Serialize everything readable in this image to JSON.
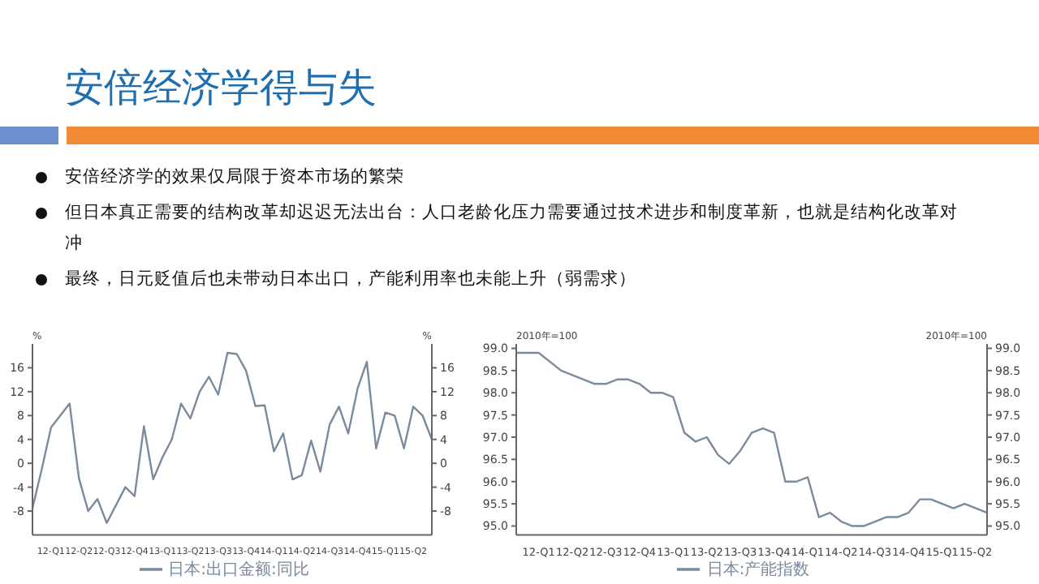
{
  "chart_data": [
    {
      "type": "line",
      "title": "安倍经济学得与失",
      "annotations": [
        "安倍经济学的效果仅局限于资本市场的繁荣",
        "但日本真正需要的结构改革却迟迟无法出台：人口老龄化压力需要通过技术进步和制度革新，也就是结构化改革对冲",
        "最终，日元贬值后也未带动日本出口，产能利用率也未能上升（弱需求）"
      ],
      "categories": [
        null,
        null,
        "12-Q1",
        null,
        null,
        "12-Q2",
        null,
        null,
        "12-Q3",
        null,
        null,
        "12-Q4",
        null,
        null,
        "13-Q1",
        null,
        null,
        "13-Q2",
        null,
        null,
        "13-Q3",
        null,
        null,
        "13-Q4",
        null,
        null,
        "14-Q1",
        null,
        null,
        "14-Q2",
        null,
        null,
        "14-Q3",
        null,
        null,
        "14-Q4",
        null,
        null,
        "15-Q1",
        null,
        null,
        "15-Q2",
        null,
        null
      ],
      "series": [
        {
          "name": "日本:出口金额:同比",
          "color": "#7b8a9c",
          "values": [
            -7.5,
            -1,
            6,
            8,
            10,
            -2.5,
            -8,
            -6,
            -10,
            -7,
            -4,
            -5.5,
            6.2,
            -2.7,
            1,
            4,
            10,
            7.5,
            12,
            14.5,
            11.5,
            18.5,
            18.3,
            15.5,
            9.6,
            9.7,
            2,
            5,
            -2.7,
            -2,
            3.8,
            -1.4,
            6.5,
            9.5,
            5,
            12.5,
            17,
            2.5,
            8.5,
            8,
            2.5,
            9.5,
            8,
            4
          ]
        }
      ],
      "ylabel": "%",
      "y2label": "%",
      "ylim": [
        -12,
        20
      ],
      "yticks": [
        -8,
        -4,
        0,
        4,
        8,
        12,
        16
      ],
      "y2lim": [
        -12,
        20
      ],
      "y2ticks": [
        -8,
        -4,
        0,
        4,
        8,
        12,
        16
      ],
      "legend": "bottom",
      "grid": false,
      "marker": "none",
      "line_style": "solid"
    },
    {
      "type": "line",
      "categories": [
        null,
        null,
        "12-Q1",
        null,
        null,
        "12-Q2",
        null,
        null,
        "12-Q3",
        null,
        null,
        "12-Q4",
        null,
        null,
        "13-Q1",
        null,
        null,
        "13-Q2",
        null,
        null,
        "13-Q3",
        null,
        null,
        "13-Q4",
        null,
        null,
        "14-Q1",
        null,
        null,
        "14-Q2",
        null,
        null,
        "14-Q3",
        null,
        null,
        "14-Q4",
        null,
        null,
        "15-Q1",
        null,
        null,
        "15-Q2",
        null
      ],
      "series": [
        {
          "name": "日本:产能指数",
          "color": "#7b8a9c",
          "values": [
            98.9,
            98.9,
            98.9,
            98.7,
            98.5,
            98.4,
            98.3,
            98.2,
            98.2,
            98.3,
            98.3,
            98.2,
            98.0,
            98.0,
            97.9,
            97.1,
            96.9,
            97.0,
            96.6,
            96.4,
            96.7,
            97.1,
            97.2,
            97.1,
            96.0,
            96.0,
            96.1,
            95.2,
            95.3,
            95.1,
            95.0,
            95.0,
            95.1,
            95.2,
            95.2,
            95.3,
            95.6,
            95.6,
            95.5,
            95.4,
            95.5,
            95.4,
            95.3
          ]
        }
      ],
      "ylabel": "2010年=100",
      "y2label": "2010年=100",
      "ylim": [
        94.8,
        99.1
      ],
      "yticks": [
        {
          "value": 95,
          "label": "95.0"
        },
        {
          "value": 95.5,
          "label": "95.5"
        },
        {
          "value": 96,
          "label": "96.0"
        },
        {
          "value": 96.5,
          "label": "96.5"
        },
        {
          "value": 97,
          "label": "97.0"
        },
        {
          "value": 97.5,
          "label": "97.5"
        },
        {
          "value": 98,
          "label": "98.0"
        },
        {
          "value": 98.5,
          "label": "98.5"
        },
        {
          "value": 99,
          "label": "99.0"
        }
      ],
      "y2lim": [
        94.8,
        99.1
      ],
      "y2ticks": [
        {
          "value": 95,
          "label": "95.0"
        },
        {
          "value": 95.5,
          "label": "95.5"
        },
        {
          "value": 96,
          "label": "96.0"
        },
        {
          "value": 96.5,
          "label": "96.5"
        },
        {
          "value": 97,
          "label": "97.0"
        },
        {
          "value": 97.5,
          "label": "97.5"
        },
        {
          "value": 98,
          "label": "98.0"
        },
        {
          "value": 98.5,
          "label": "98.5"
        },
        {
          "value": 99,
          "label": "99.0"
        }
      ],
      "legend": "bottom",
      "grid": false,
      "marker": "none",
      "line_style": "solid"
    }
  ]
}
